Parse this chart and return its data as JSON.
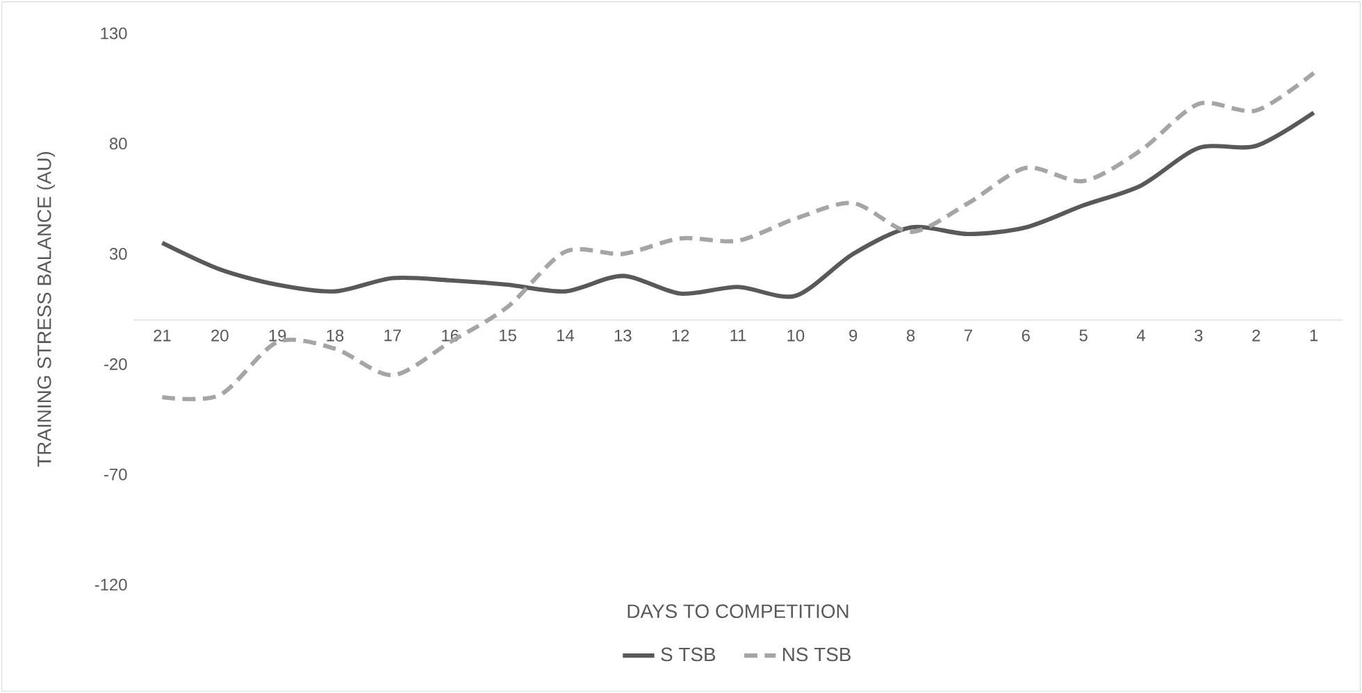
{
  "chart_data": {
    "type": "line",
    "xlabel": "DAYS TO COMPETITION",
    "ylabel": "TRAINING STRESS BALANCE (AU)",
    "categories": [
      "21",
      "20",
      "19",
      "18",
      "17",
      "16",
      "15",
      "14",
      "13",
      "12",
      "11",
      "10",
      "9",
      "8",
      "7",
      "6",
      "5",
      "4",
      "3",
      "2",
      "1"
    ],
    "series": [
      {
        "name": "S TSB",
        "color": "#595959",
        "line_style": "solid",
        "values": [
          35,
          23,
          16,
          13,
          19,
          18,
          16,
          13,
          20,
          12,
          15,
          11,
          30,
          42,
          39,
          42,
          52,
          61,
          78,
          79,
          94
        ]
      },
      {
        "name": "NS TSB",
        "color": "#a5a5a5",
        "line_style": "dashed",
        "values": [
          -35,
          -34,
          -10,
          -13,
          -25,
          -10,
          6,
          31,
          30,
          37,
          36,
          46,
          53,
          40,
          53,
          69,
          63,
          77,
          98,
          95,
          112
        ]
      }
    ],
    "ylim": [
      -120,
      130
    ],
    "yticks": [
      -120,
      -70,
      -20,
      30,
      80,
      130
    ],
    "legend": "bottom"
  }
}
